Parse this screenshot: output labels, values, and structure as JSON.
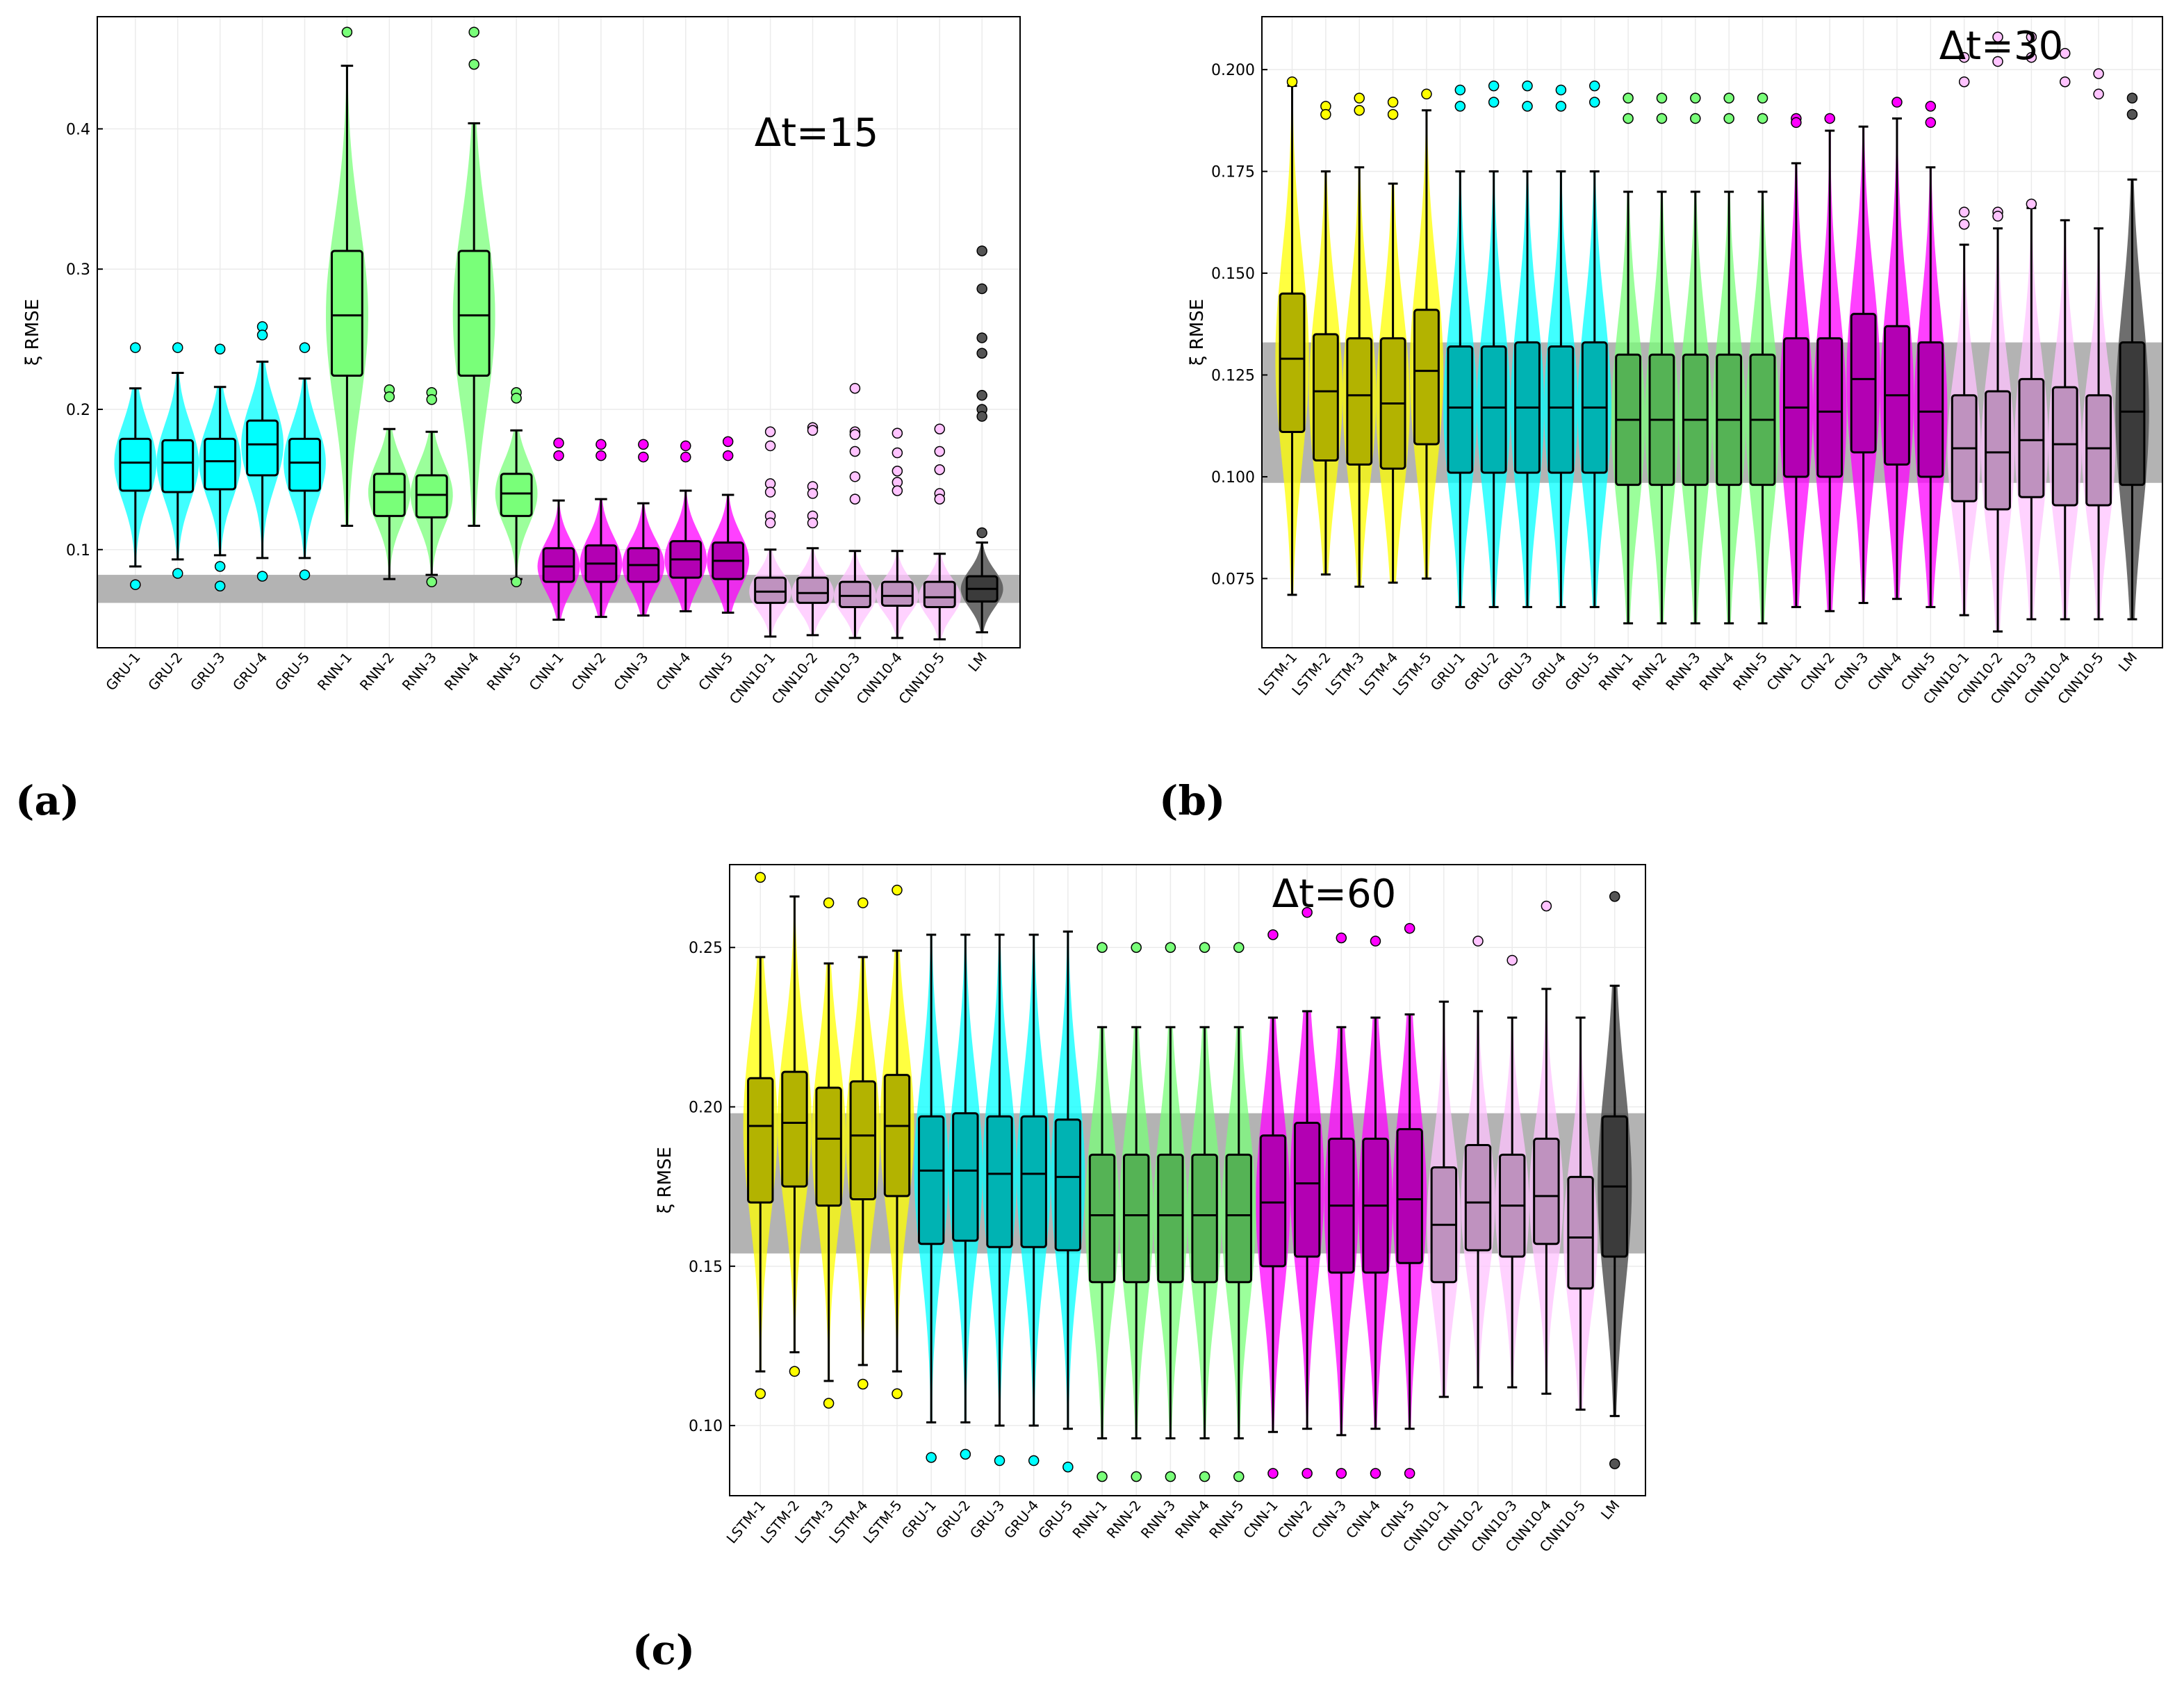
{
  "figure": {
    "labels": [
      "(a)",
      "(b)",
      "(c)"
    ]
  },
  "colors": {
    "LSTM": "#ffff00",
    "GRU": "#00ffff",
    "RNN": "#79ff79",
    "CNN": "#ff00ff",
    "CNN10": "#ffc3ff",
    "LM": "#555555",
    "band": "#b3b3b3"
  },
  "chart_data": [
    {
      "type": "box-violin",
      "annotation": "Δt=15",
      "ylabel": "ξ RMSE",
      "ylim": [
        0.03,
        0.48
      ],
      "yticks": [
        0.1,
        0.2,
        0.3,
        0.4
      ],
      "ytick_labels": [
        "0.1",
        "0.2",
        "0.3",
        "0.4"
      ],
      "band": [
        0.062,
        0.082
      ],
      "categories": [
        "GRU-1",
        "GRU-2",
        "GRU-3",
        "GRU-4",
        "GRU-5",
        "RNN-1",
        "RNN-2",
        "RNN-3",
        "RNN-4",
        "RNN-5",
        "CNN-1",
        "CNN-2",
        "CNN-3",
        "CNN-4",
        "CNN-5",
        "CNN10-1",
        "CNN10-2",
        "CNN10-3",
        "CNN10-4",
        "CNN10-5",
        "LM"
      ],
      "groups": [
        "GRU",
        "GRU",
        "GRU",
        "GRU",
        "GRU",
        "RNN",
        "RNN",
        "RNN",
        "RNN",
        "RNN",
        "CNN",
        "CNN",
        "CNN",
        "CNN",
        "CNN",
        "CNN10",
        "CNN10",
        "CNN10",
        "CNN10",
        "CNN10",
        "LM"
      ],
      "boxes": [
        {
          "min": 0.088,
          "q1": 0.142,
          "median": 0.162,
          "q3": 0.179,
          "max": 0.215,
          "outliers": [
            0.244,
            0.075
          ]
        },
        {
          "min": 0.093,
          "q1": 0.141,
          "median": 0.162,
          "q3": 0.178,
          "max": 0.226,
          "outliers": [
            0.244,
            0.083
          ]
        },
        {
          "min": 0.096,
          "q1": 0.143,
          "median": 0.163,
          "q3": 0.179,
          "max": 0.216,
          "outliers": [
            0.243,
            0.088,
            0.074
          ]
        },
        {
          "min": 0.094,
          "q1": 0.153,
          "median": 0.175,
          "q3": 0.192,
          "max": 0.234,
          "outliers": [
            0.259,
            0.253,
            0.081
          ]
        },
        {
          "min": 0.094,
          "q1": 0.142,
          "median": 0.162,
          "q3": 0.179,
          "max": 0.222,
          "outliers": [
            0.244,
            0.082
          ]
        },
        {
          "min": 0.117,
          "q1": 0.224,
          "median": 0.267,
          "q3": 0.313,
          "max": 0.445,
          "outliers": [
            0.469
          ]
        },
        {
          "min": 0.079,
          "q1": 0.124,
          "median": 0.141,
          "q3": 0.154,
          "max": 0.186,
          "outliers": [
            0.214,
            0.209
          ]
        },
        {
          "min": 0.082,
          "q1": 0.123,
          "median": 0.139,
          "q3": 0.153,
          "max": 0.184,
          "outliers": [
            0.212,
            0.207,
            0.077
          ]
        },
        {
          "min": 0.117,
          "q1": 0.224,
          "median": 0.267,
          "q3": 0.313,
          "max": 0.404,
          "outliers": [
            0.469,
            0.446
          ]
        },
        {
          "min": 0.079,
          "q1": 0.124,
          "median": 0.14,
          "q3": 0.154,
          "max": 0.185,
          "outliers": [
            0.212,
            0.208,
            0.077
          ]
        },
        {
          "min": 0.05,
          "q1": 0.077,
          "median": 0.088,
          "q3": 0.101,
          "max": 0.135,
          "outliers": [
            0.176,
            0.167
          ]
        },
        {
          "min": 0.052,
          "q1": 0.077,
          "median": 0.09,
          "q3": 0.103,
          "max": 0.136,
          "outliers": [
            0.175,
            0.167
          ]
        },
        {
          "min": 0.053,
          "q1": 0.077,
          "median": 0.089,
          "q3": 0.101,
          "max": 0.133,
          "outliers": [
            0.175,
            0.166
          ]
        },
        {
          "min": 0.056,
          "q1": 0.08,
          "median": 0.093,
          "q3": 0.106,
          "max": 0.142,
          "outliers": [
            0.174,
            0.166
          ]
        },
        {
          "min": 0.055,
          "q1": 0.079,
          "median": 0.092,
          "q3": 0.105,
          "max": 0.139,
          "outliers": [
            0.177,
            0.167
          ]
        },
        {
          "min": 0.038,
          "q1": 0.062,
          "median": 0.07,
          "q3": 0.08,
          "max": 0.1,
          "outliers": [
            0.184,
            0.174,
            0.147,
            0.141,
            0.124,
            0.119
          ]
        },
        {
          "min": 0.039,
          "q1": 0.062,
          "median": 0.069,
          "q3": 0.08,
          "max": 0.101,
          "outliers": [
            0.187,
            0.185,
            0.145,
            0.14,
            0.124,
            0.119
          ]
        },
        {
          "min": 0.037,
          "q1": 0.059,
          "median": 0.067,
          "q3": 0.077,
          "max": 0.099,
          "outliers": [
            0.215,
            0.184,
            0.182,
            0.17,
            0.152,
            0.136
          ]
        },
        {
          "min": 0.037,
          "q1": 0.06,
          "median": 0.067,
          "q3": 0.077,
          "max": 0.099,
          "outliers": [
            0.183,
            0.169,
            0.156,
            0.148,
            0.142
          ]
        },
        {
          "min": 0.036,
          "q1": 0.059,
          "median": 0.066,
          "q3": 0.077,
          "max": 0.097,
          "outliers": [
            0.186,
            0.17,
            0.157,
            0.14,
            0.136
          ]
        },
        {
          "min": 0.041,
          "q1": 0.063,
          "median": 0.072,
          "q3": 0.081,
          "max": 0.105,
          "outliers": [
            0.313,
            0.286,
            0.251,
            0.24,
            0.21,
            0.2,
            0.195,
            0.112
          ]
        }
      ]
    },
    {
      "type": "box-violin",
      "annotation": "Δt=30",
      "ylabel": "ξ RMSE",
      "ylim": [
        0.058,
        0.213
      ],
      "yticks": [
        0.075,
        0.1,
        0.125,
        0.15,
        0.175,
        0.2
      ],
      "ytick_labels": [
        "0.075",
        "0.100",
        "0.125",
        "0.150",
        "0.175",
        "0.200"
      ],
      "band": [
        0.0985,
        0.133
      ],
      "categories": [
        "LSTM-1",
        "LSTM-2",
        "LSTM-3",
        "LSTM-4",
        "LSTM-5",
        "GRU-1",
        "GRU-2",
        "GRU-3",
        "GRU-4",
        "GRU-5",
        "RNN-1",
        "RNN-2",
        "RNN-3",
        "RNN-4",
        "RNN-5",
        "CNN-1",
        "CNN-2",
        "CNN-3",
        "CNN-4",
        "CNN-5",
        "CNN10-1",
        "CNN10-2",
        "CNN10-3",
        "CNN10-4",
        "CNN10-5",
        "LM"
      ],
      "groups": [
        "LSTM",
        "LSTM",
        "LSTM",
        "LSTM",
        "LSTM",
        "GRU",
        "GRU",
        "GRU",
        "GRU",
        "GRU",
        "RNN",
        "RNN",
        "RNN",
        "RNN",
        "RNN",
        "CNN",
        "CNN",
        "CNN",
        "CNN",
        "CNN",
        "CNN10",
        "CNN10",
        "CNN10",
        "CNN10",
        "CNN10",
        "LM"
      ],
      "boxes": [
        {
          "min": 0.071,
          "q1": 0.111,
          "median": 0.129,
          "q3": 0.145,
          "max": 0.196,
          "outliers": [
            0.197
          ]
        },
        {
          "min": 0.076,
          "q1": 0.104,
          "median": 0.121,
          "q3": 0.135,
          "max": 0.175,
          "outliers": [
            0.191,
            0.189
          ]
        },
        {
          "min": 0.073,
          "q1": 0.103,
          "median": 0.12,
          "q3": 0.134,
          "max": 0.176,
          "outliers": [
            0.193,
            0.19
          ]
        },
        {
          "min": 0.074,
          "q1": 0.102,
          "median": 0.118,
          "q3": 0.134,
          "max": 0.172,
          "outliers": [
            0.192,
            0.189
          ]
        },
        {
          "min": 0.075,
          "q1": 0.108,
          "median": 0.126,
          "q3": 0.141,
          "max": 0.19,
          "outliers": [
            0.194
          ]
        },
        {
          "min": 0.068,
          "q1": 0.101,
          "median": 0.117,
          "q3": 0.132,
          "max": 0.175,
          "outliers": [
            0.195,
            0.191
          ]
        },
        {
          "min": 0.068,
          "q1": 0.101,
          "median": 0.117,
          "q3": 0.132,
          "max": 0.175,
          "outliers": [
            0.196,
            0.192
          ]
        },
        {
          "min": 0.068,
          "q1": 0.101,
          "median": 0.117,
          "q3": 0.133,
          "max": 0.175,
          "outliers": [
            0.196,
            0.191
          ]
        },
        {
          "min": 0.068,
          "q1": 0.101,
          "median": 0.117,
          "q3": 0.132,
          "max": 0.175,
          "outliers": [
            0.195,
            0.191
          ]
        },
        {
          "min": 0.068,
          "q1": 0.101,
          "median": 0.117,
          "q3": 0.133,
          "max": 0.175,
          "outliers": [
            0.196,
            0.192
          ]
        },
        {
          "min": 0.064,
          "q1": 0.098,
          "median": 0.114,
          "q3": 0.13,
          "max": 0.17,
          "outliers": [
            0.193,
            0.188
          ]
        },
        {
          "min": 0.064,
          "q1": 0.098,
          "median": 0.114,
          "q3": 0.13,
          "max": 0.17,
          "outliers": [
            0.193,
            0.188
          ]
        },
        {
          "min": 0.064,
          "q1": 0.098,
          "median": 0.114,
          "q3": 0.13,
          "max": 0.17,
          "outliers": [
            0.193,
            0.188
          ]
        },
        {
          "min": 0.064,
          "q1": 0.098,
          "median": 0.114,
          "q3": 0.13,
          "max": 0.17,
          "outliers": [
            0.193,
            0.188
          ]
        },
        {
          "min": 0.064,
          "q1": 0.098,
          "median": 0.114,
          "q3": 0.13,
          "max": 0.17,
          "outliers": [
            0.193,
            0.188
          ]
        },
        {
          "min": 0.068,
          "q1": 0.1,
          "median": 0.117,
          "q3": 0.134,
          "max": 0.177,
          "outliers": [
            0.188,
            0.187
          ]
        },
        {
          "min": 0.067,
          "q1": 0.1,
          "median": 0.116,
          "q3": 0.134,
          "max": 0.185,
          "outliers": [
            0.188
          ]
        },
        {
          "min": 0.069,
          "q1": 0.106,
          "median": 0.124,
          "q3": 0.14,
          "max": 0.186,
          "outliers": []
        },
        {
          "min": 0.07,
          "q1": 0.103,
          "median": 0.12,
          "q3": 0.137,
          "max": 0.188,
          "outliers": [
            0.192
          ]
        },
        {
          "min": 0.068,
          "q1": 0.1,
          "median": 0.116,
          "q3": 0.133,
          "max": 0.176,
          "outliers": [
            0.191,
            0.187
          ]
        },
        {
          "min": 0.066,
          "q1": 0.094,
          "median": 0.107,
          "q3": 0.12,
          "max": 0.157,
          "outliers": [
            0.203,
            0.197,
            0.165,
            0.162
          ]
        },
        {
          "min": 0.062,
          "q1": 0.092,
          "median": 0.106,
          "q3": 0.121,
          "max": 0.161,
          "outliers": [
            0.208,
            0.202,
            0.165,
            0.164
          ]
        },
        {
          "min": 0.065,
          "q1": 0.095,
          "median": 0.109,
          "q3": 0.124,
          "max": 0.166,
          "outliers": [
            0.208,
            0.203,
            0.167
          ]
        },
        {
          "min": 0.065,
          "q1": 0.093,
          "median": 0.108,
          "q3": 0.122,
          "max": 0.163,
          "outliers": [
            0.204,
            0.197
          ]
        },
        {
          "min": 0.065,
          "q1": 0.093,
          "median": 0.107,
          "q3": 0.12,
          "max": 0.161,
          "outliers": [
            0.199,
            0.194
          ]
        },
        {
          "min": 0.065,
          "q1": 0.098,
          "median": 0.116,
          "q3": 0.133,
          "max": 0.173,
          "outliers": [
            0.193,
            0.189
          ]
        }
      ]
    },
    {
      "type": "box-violin",
      "annotation": "Δt=60",
      "ylabel": "ξ RMSE",
      "ylim": [
        0.078,
        0.276
      ],
      "yticks": [
        0.1,
        0.15,
        0.2,
        0.25
      ],
      "ytick_labels": [
        "0.10",
        "0.15",
        "0.20",
        "0.25"
      ],
      "band": [
        0.154,
        0.198
      ],
      "categories": [
        "LSTM-1",
        "LSTM-2",
        "LSTM-3",
        "LSTM-4",
        "LSTM-5",
        "GRU-1",
        "GRU-2",
        "GRU-3",
        "GRU-4",
        "GRU-5",
        "RNN-1",
        "RNN-2",
        "RNN-3",
        "RNN-4",
        "RNN-5",
        "CNN-1",
        "CNN-2",
        "CNN-3",
        "CNN-4",
        "CNN-5",
        "CNN10-1",
        "CNN10-2",
        "CNN10-3",
        "CNN10-4",
        "CNN10-5",
        "LM"
      ],
      "groups": [
        "LSTM",
        "LSTM",
        "LSTM",
        "LSTM",
        "LSTM",
        "GRU",
        "GRU",
        "GRU",
        "GRU",
        "GRU",
        "RNN",
        "RNN",
        "RNN",
        "RNN",
        "RNN",
        "CNN",
        "CNN",
        "CNN",
        "CNN",
        "CNN",
        "CNN10",
        "CNN10",
        "CNN10",
        "CNN10",
        "CNN10",
        "LM"
      ],
      "boxes": [
        {
          "min": 0.117,
          "q1": 0.17,
          "median": 0.194,
          "q3": 0.209,
          "max": 0.247,
          "outliers": [
            0.272,
            0.11
          ]
        },
        {
          "min": 0.123,
          "q1": 0.175,
          "median": 0.195,
          "q3": 0.211,
          "max": 0.266,
          "outliers": [
            0.117
          ]
        },
        {
          "min": 0.114,
          "q1": 0.169,
          "median": 0.19,
          "q3": 0.206,
          "max": 0.245,
          "outliers": [
            0.264,
            0.107
          ]
        },
        {
          "min": 0.119,
          "q1": 0.171,
          "median": 0.191,
          "q3": 0.208,
          "max": 0.247,
          "outliers": [
            0.264,
            0.113
          ]
        },
        {
          "min": 0.117,
          "q1": 0.172,
          "median": 0.194,
          "q3": 0.21,
          "max": 0.249,
          "outliers": [
            0.268,
            0.11
          ]
        },
        {
          "min": 0.101,
          "q1": 0.157,
          "median": 0.18,
          "q3": 0.197,
          "max": 0.254,
          "outliers": [
            0.09
          ]
        },
        {
          "min": 0.101,
          "q1": 0.158,
          "median": 0.18,
          "q3": 0.198,
          "max": 0.254,
          "outliers": [
            0.091
          ]
        },
        {
          "min": 0.1,
          "q1": 0.156,
          "median": 0.179,
          "q3": 0.197,
          "max": 0.254,
          "outliers": [
            0.089
          ]
        },
        {
          "min": 0.1,
          "q1": 0.156,
          "median": 0.179,
          "q3": 0.197,
          "max": 0.254,
          "outliers": [
            0.089
          ]
        },
        {
          "min": 0.099,
          "q1": 0.155,
          "median": 0.178,
          "q3": 0.196,
          "max": 0.255,
          "outliers": [
            0.087
          ]
        },
        {
          "min": 0.096,
          "q1": 0.145,
          "median": 0.166,
          "q3": 0.185,
          "max": 0.225,
          "outliers": [
            0.25,
            0.084
          ]
        },
        {
          "min": 0.096,
          "q1": 0.145,
          "median": 0.166,
          "q3": 0.185,
          "max": 0.225,
          "outliers": [
            0.25,
            0.084
          ]
        },
        {
          "min": 0.096,
          "q1": 0.145,
          "median": 0.166,
          "q3": 0.185,
          "max": 0.225,
          "outliers": [
            0.25,
            0.084
          ]
        },
        {
          "min": 0.096,
          "q1": 0.145,
          "median": 0.166,
          "q3": 0.185,
          "max": 0.225,
          "outliers": [
            0.25,
            0.084
          ]
        },
        {
          "min": 0.096,
          "q1": 0.145,
          "median": 0.166,
          "q3": 0.185,
          "max": 0.225,
          "outliers": [
            0.25,
            0.084
          ]
        },
        {
          "min": 0.098,
          "q1": 0.15,
          "median": 0.17,
          "q3": 0.191,
          "max": 0.228,
          "outliers": [
            0.254,
            0.085
          ]
        },
        {
          "min": 0.099,
          "q1": 0.153,
          "median": 0.176,
          "q3": 0.195,
          "max": 0.23,
          "outliers": [
            0.261,
            0.085
          ]
        },
        {
          "min": 0.097,
          "q1": 0.148,
          "median": 0.169,
          "q3": 0.19,
          "max": 0.225,
          "outliers": [
            0.253,
            0.085
          ]
        },
        {
          "min": 0.099,
          "q1": 0.148,
          "median": 0.169,
          "q3": 0.19,
          "max": 0.228,
          "outliers": [
            0.252,
            0.085
          ]
        },
        {
          "min": 0.099,
          "q1": 0.151,
          "median": 0.171,
          "q3": 0.193,
          "max": 0.229,
          "outliers": [
            0.256,
            0.085
          ]
        },
        {
          "min": 0.109,
          "q1": 0.145,
          "median": 0.163,
          "q3": 0.181,
          "max": 0.233,
          "outliers": []
        },
        {
          "min": 0.112,
          "q1": 0.155,
          "median": 0.17,
          "q3": 0.188,
          "max": 0.23,
          "outliers": [
            0.252
          ]
        },
        {
          "min": 0.112,
          "q1": 0.153,
          "median": 0.169,
          "q3": 0.185,
          "max": 0.228,
          "outliers": [
            0.246
          ]
        },
        {
          "min": 0.11,
          "q1": 0.157,
          "median": 0.172,
          "q3": 0.19,
          "max": 0.237,
          "outliers": [
            0.263
          ]
        },
        {
          "min": 0.105,
          "q1": 0.143,
          "median": 0.159,
          "q3": 0.178,
          "max": 0.228,
          "outliers": []
        },
        {
          "min": 0.103,
          "q1": 0.153,
          "median": 0.175,
          "q3": 0.197,
          "max": 0.238,
          "outliers": [
            0.266,
            0.088
          ]
        }
      ]
    }
  ]
}
